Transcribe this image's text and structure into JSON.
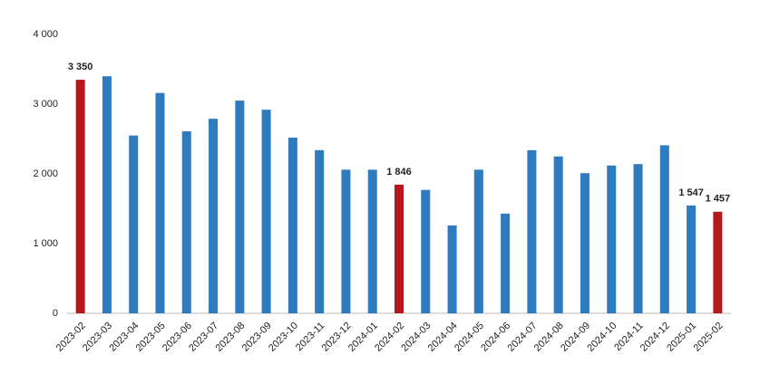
{
  "chart_data": {
    "type": "bar",
    "categories": [
      "2023-02",
      "2023-03",
      "2023-04",
      "2023-05",
      "2023-06",
      "2023-07",
      "2023-08",
      "2023-09",
      "2023-10",
      "2023-11",
      "2023-12",
      "2024-01",
      "2024-02",
      "2024-03",
      "2024-04",
      "2024-05",
      "2024-06",
      "2024-07",
      "2024-08",
      "2024-09",
      "2024-10",
      "2024-11",
      "2024-12",
      "2025-01",
      "2025-02"
    ],
    "values": [
      3350,
      3400,
      2550,
      3160,
      2610,
      2790,
      3050,
      2920,
      2520,
      2340,
      2060,
      2060,
      1846,
      1770,
      1260,
      2060,
      1430,
      2340,
      2250,
      2010,
      2120,
      2140,
      2410,
      1547,
      1457
    ],
    "value_labels": [
      "3 350",
      null,
      null,
      null,
      null,
      null,
      null,
      null,
      null,
      null,
      null,
      null,
      "1 846",
      null,
      null,
      null,
      null,
      null,
      null,
      null,
      null,
      null,
      null,
      "1 547",
      "1 457"
    ],
    "colors": [
      "#b5191f",
      "#2e7bbf",
      "#2e7bbf",
      "#2e7bbf",
      "#2e7bbf",
      "#2e7bbf",
      "#2e7bbf",
      "#2e7bbf",
      "#2e7bbf",
      "#2e7bbf",
      "#2e7bbf",
      "#2e7bbf",
      "#b5191f",
      "#2e7bbf",
      "#2e7bbf",
      "#2e7bbf",
      "#2e7bbf",
      "#2e7bbf",
      "#2e7bbf",
      "#2e7bbf",
      "#2e7bbf",
      "#2e7bbf",
      "#2e7bbf",
      "#2e7bbf",
      "#b5191f"
    ],
    "ylim": [
      0,
      4000
    ],
    "yticks": [
      0,
      {
        "value": 1000,
        "label": "1 000"
      },
      {
        "value": 2000,
        "label": "2 000"
      },
      {
        "value": 3000,
        "label": "3 000"
      },
      {
        "value": 4000,
        "label": "4 000"
      }
    ],
    "grid": false
  }
}
